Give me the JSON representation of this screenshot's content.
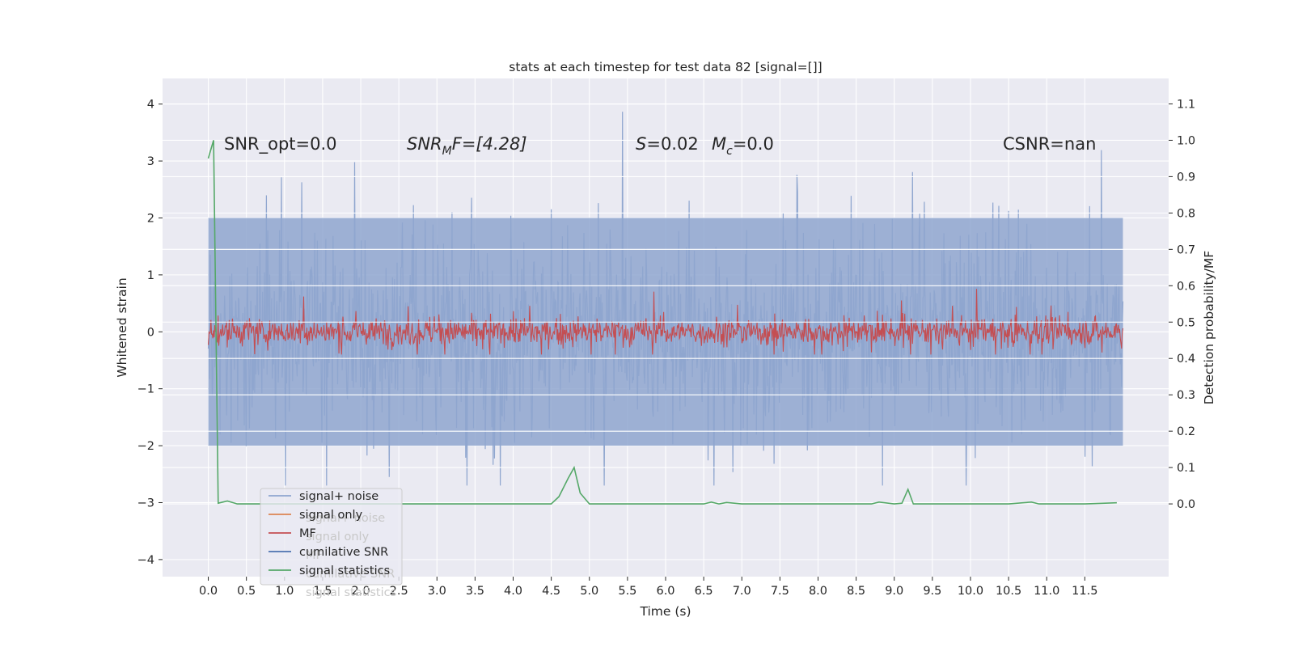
{
  "chart_data": {
    "type": "line",
    "title": "stats at each timestep for test data 82 [signal=[]]",
    "xlabel": "Time (s)",
    "ylabel": "Whitened strain",
    "ylabel_right": "Detection probability/MF",
    "xlim": [
      -0.6,
      12.6
    ],
    "ylim": [
      -4.3,
      4.45
    ],
    "ylim_right": [
      -0.2,
      1.17
    ],
    "x_ticks": [
      "0.0",
      "0.5",
      "1.0",
      "1.5",
      "2.0",
      "2.5",
      "3.0",
      "3.5",
      "4.0",
      "4.5",
      "5.0",
      "5.5",
      "6.0",
      "6.5",
      "7.0",
      "7.5",
      "8.0",
      "8.5",
      "9.0",
      "9.5",
      "10.0",
      "10.5",
      "11.0",
      "11.5"
    ],
    "y_ticks_left": [
      "−4",
      "−3",
      "−2",
      "−1",
      "0",
      "1",
      "2",
      "3",
      "4"
    ],
    "y_ticks_right": [
      "0.0",
      "0.1",
      "0.2",
      "0.3",
      "0.4",
      "0.5",
      "0.6",
      "0.7",
      "0.8",
      "0.9",
      "1.0",
      "1.1"
    ],
    "grid": true,
    "legend_position": "lower-left",
    "annotations": {
      "snr_opt": "SNR_opt=0.0",
      "snr_mf_label": "SNR",
      "snr_mf_sub": "M",
      "snr_mf_rest": "F=[4.28]",
      "s_label": "S",
      "s_rest": "=0.02",
      "mc_label": "M",
      "mc_sub": "c",
      "mc_rest": "=0.0",
      "csnr": "CSNR=nan"
    },
    "series": [
      {
        "name": "signal+ noise",
        "color": "#8fa6cf",
        "axis": "left",
        "description_range": [
          -2.7,
          4.1
        ],
        "x_range": [
          0.0,
          12.0
        ]
      },
      {
        "name": "signal only",
        "color": "#dd8452",
        "axis": "left"
      },
      {
        "name": "MF",
        "color": "#c44e52",
        "axis": "left",
        "description_range": [
          -0.4,
          1.0
        ],
        "x_range": [
          0.0,
          12.0
        ]
      },
      {
        "name": "cumilative SNR",
        "color": "#4c72b0",
        "axis": "right"
      },
      {
        "name": "signal statistics",
        "color": "#55a868",
        "axis": "right",
        "x": [
          0.0,
          0.07,
          0.13,
          0.25,
          0.38,
          0.5,
          1.0,
          2.0,
          3.0,
          4.0,
          4.5,
          4.6,
          4.72,
          4.8,
          4.88,
          5.0,
          5.5,
          6.0,
          6.5,
          6.6,
          6.7,
          6.8,
          7.0,
          8.0,
          8.7,
          8.8,
          9.0,
          9.1,
          9.18,
          9.25,
          9.5,
          10.0,
          10.5,
          10.8,
          10.9,
          11.5,
          11.92
        ],
        "y": [
          0.95,
          1.0,
          0.002,
          0.008,
          0.0,
          0.0,
          0.0,
          0.0,
          0.0,
          0.0,
          0.0,
          0.02,
          0.07,
          0.1,
          0.03,
          0.0,
          0.0,
          0.0,
          0.0,
          0.005,
          0.0,
          0.004,
          0.0,
          0.0,
          0.0,
          0.005,
          0.0,
          0.002,
          0.04,
          0.0,
          0.0,
          0.0,
          0.0,
          0.005,
          0.0,
          0.0,
          0.003
        ]
      }
    ]
  },
  "legend": {
    "items": [
      {
        "label": "signal+ noise",
        "color": "#8fa6cf"
      },
      {
        "label": "signal only",
        "color": "#dd8452"
      },
      {
        "label": "MF",
        "color": "#c44e52"
      },
      {
        "label": "cumilative SNR",
        "color": "#4c72b0"
      },
      {
        "label": "signal statistics",
        "color": "#55a868"
      }
    ],
    "ghost_items": [
      "signal+ noise",
      "signal only",
      "MF",
      "cumilative SNR",
      "signal statistics"
    ]
  },
  "colors": {
    "plot_background": "#eaeaf2",
    "grid": "#ffffff",
    "text": "#262626"
  }
}
